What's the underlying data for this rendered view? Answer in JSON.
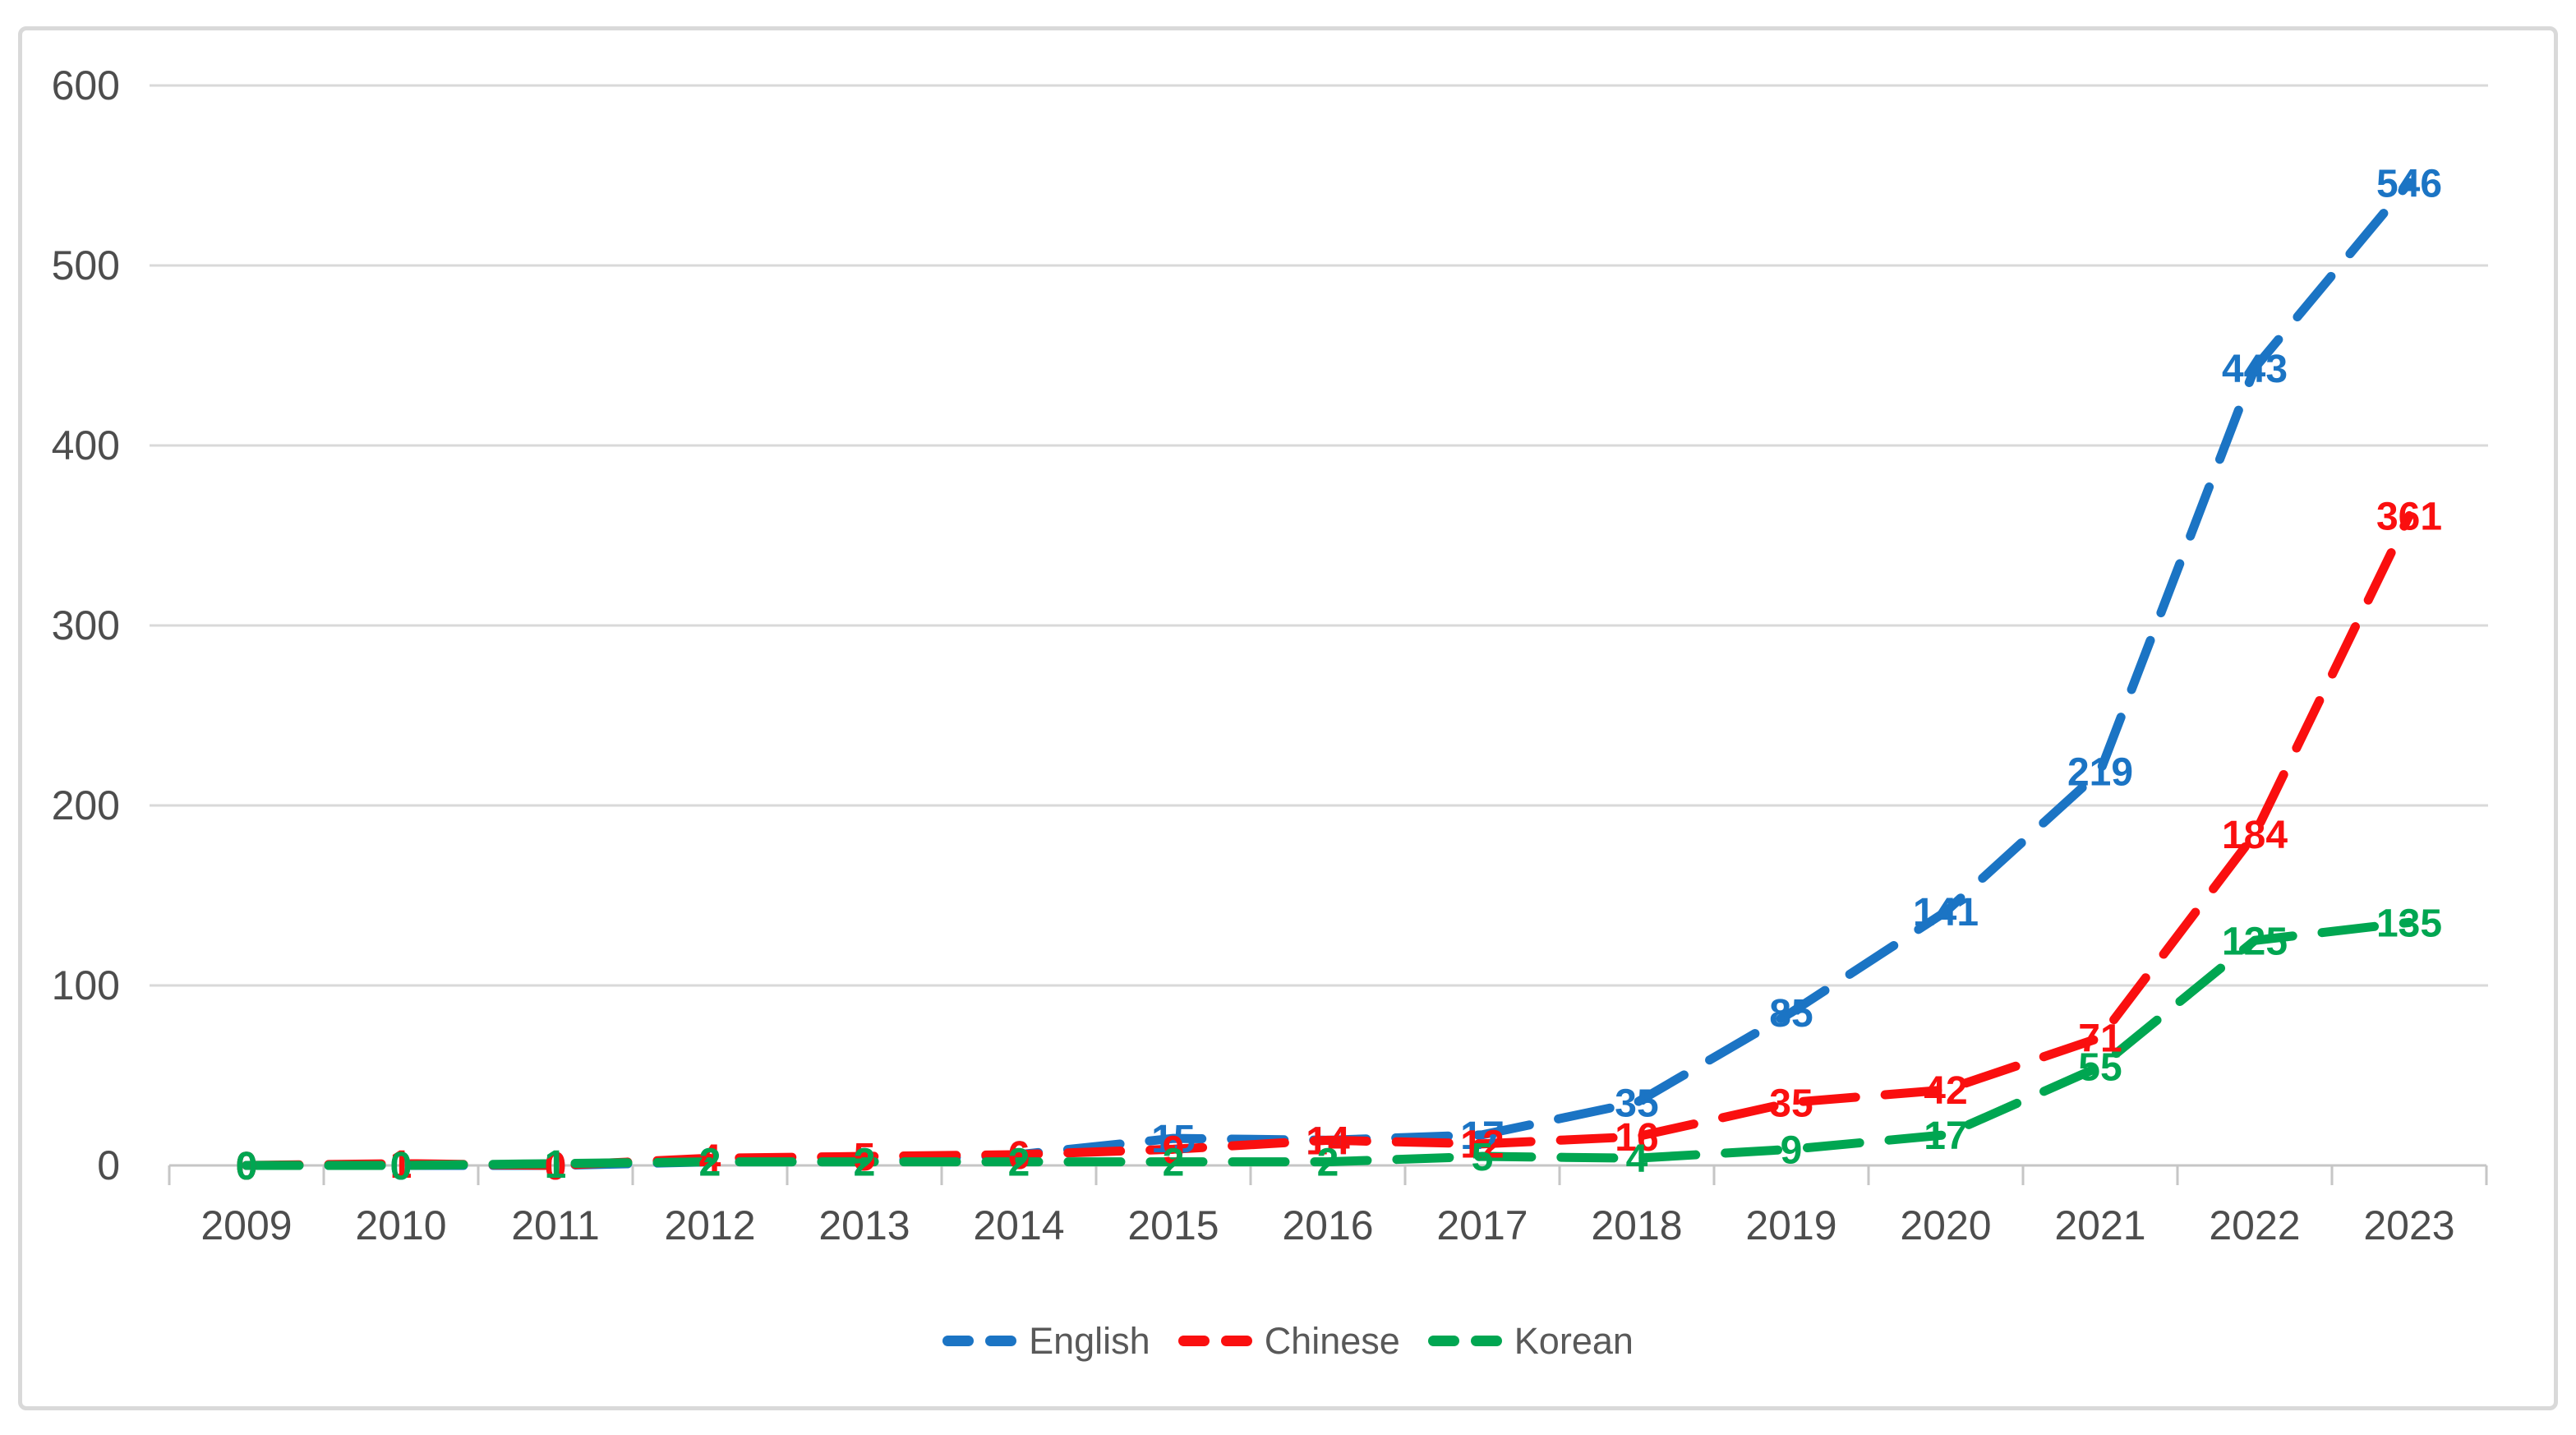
{
  "frame": {
    "background": "#ffffff",
    "border_color": "#d9d9d9"
  },
  "chart_data": {
    "type": "line",
    "title": "",
    "categories": [
      "2009",
      "2010",
      "2011",
      "2012",
      "2013",
      "2014",
      "2015",
      "2016",
      "2017",
      "2018",
      "2019",
      "2020",
      "2021",
      "2022",
      "2023"
    ],
    "series": [
      {
        "name": "English",
        "color": "#1b74c4",
        "values": [
          0,
          0,
          0,
          2,
          2,
          6,
          15,
          14,
          17,
          35,
          85,
          141,
          219,
          443,
          546
        ]
      },
      {
        "name": "Chinese",
        "color": "#fa0f0f",
        "values": [
          0,
          1,
          0,
          4,
          5,
          6,
          9,
          14,
          12,
          16,
          35,
          42,
          71,
          184,
          361
        ]
      },
      {
        "name": "Korean",
        "color": "#00a651",
        "values": [
          0,
          0,
          1,
          2,
          2,
          2,
          2,
          2,
          5,
          4,
          9,
          17,
          55,
          125,
          135
        ]
      }
    ],
    "ylim": [
      0,
      600
    ],
    "yticks": [
      "0",
      "100",
      "200",
      "300",
      "400",
      "500",
      "600"
    ],
    "grid": "horizontal",
    "gridline_color": "#d9d9d9",
    "axis_color": "#c6c6c6",
    "axis_text_color": "#4d4d4d",
    "legend_text_color": "#595959",
    "line_style": "dashed",
    "data_labels": true,
    "legend_position": "bottom-center"
  }
}
